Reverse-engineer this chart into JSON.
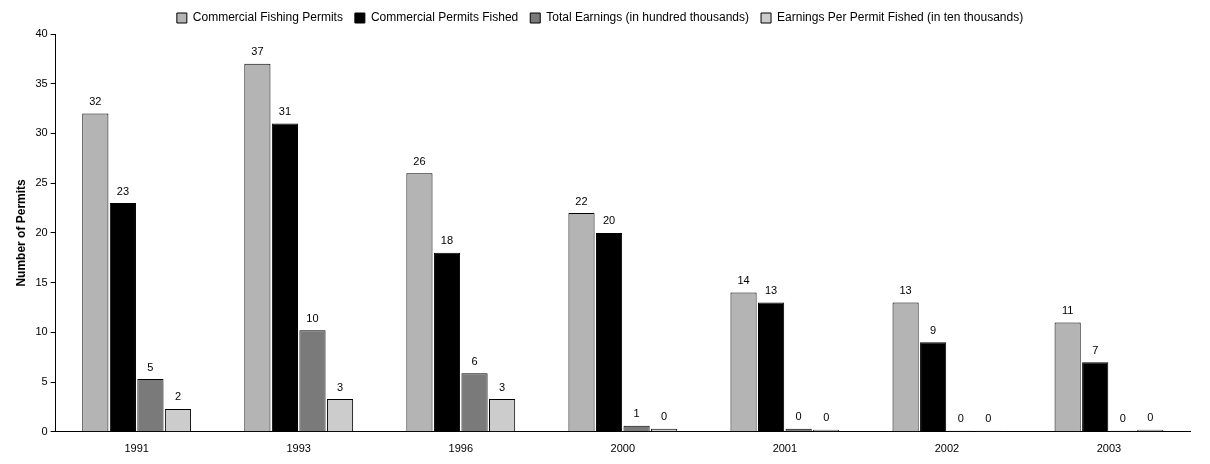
{
  "chart_data": {
    "type": "bar",
    "ylabel": "Number of Permits",
    "categories": [
      "1991",
      "1993",
      "1996",
      "2000",
      "2001",
      "2002",
      "2003"
    ],
    "series": [
      {
        "name": "Commercial Fishing Permits",
        "color": "#b4b4b4",
        "values": [
          32,
          37,
          26,
          22,
          14,
          13,
          11
        ],
        "value_labels": [
          "32",
          "37",
          "26",
          "22",
          "14",
          "13",
          "11"
        ]
      },
      {
        "name": "Commercial Permits Fished",
        "color": "#000000",
        "values": [
          23,
          31,
          18,
          20,
          13,
          9,
          7
        ],
        "value_labels": [
          "23",
          "31",
          "18",
          "20",
          "13",
          "9",
          "7"
        ]
      },
      {
        "name": "Total Earnings (in hundred thousands)",
        "color": "#7a7a7a",
        "values": [
          5.3,
          10.2,
          5.9,
          0.6,
          0.3,
          0.1,
          0.1
        ],
        "value_labels": [
          "5",
          "10",
          "6",
          "1",
          "0",
          "0",
          "0"
        ]
      },
      {
        "name": "Earnings Per Permit Fished (in ten thousands)",
        "color": "#cccccc",
        "values": [
          2.3,
          3.3,
          3.3,
          0.3,
          0.2,
          0.1,
          0.2
        ],
        "value_labels": [
          "2",
          "3",
          "3",
          "0",
          "0",
          "0",
          "0"
        ]
      }
    ],
    "ylim": [
      0,
      40
    ],
    "yticks": [
      0,
      5,
      10,
      15,
      20,
      25,
      30,
      35,
      40
    ],
    "grid": false,
    "legend": "top"
  }
}
